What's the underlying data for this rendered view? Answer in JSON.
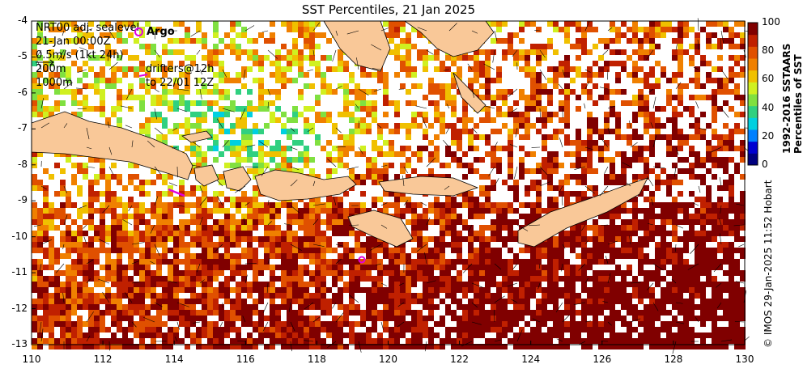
{
  "title": "SST Percentiles, 21 Jan 2025",
  "overlay": {
    "line1": "NRT00 adj. sealevel",
    "line2": "21-Jan 00:00Z",
    "line3": "0.5m/s (1kt 24h)",
    "line4": "200m",
    "line5": "1000m",
    "argo_label": "Argo",
    "drifters_line1": "drifters@12h",
    "drifters_line2": "to 22/01 12Z"
  },
  "colorbar": {
    "ticks": [
      "100",
      "80",
      "60",
      "40",
      "20",
      "0"
    ],
    "title_line1": "1992-2016 SSTAARS",
    "title_line2": "Percentiles of SST"
  },
  "credit": "© IMOS 29-Jan-2025 11:52 Hobart",
  "axes": {
    "y_ticks": [
      "-4",
      "-5",
      "-6",
      "-7",
      "-8",
      "-9",
      "-10",
      "-11",
      "-12",
      "-13"
    ],
    "x_ticks": [
      "110",
      "112",
      "114",
      "116",
      "118",
      "120",
      "122",
      "124",
      "126",
      "128",
      "130"
    ]
  },
  "colors": {
    "land": "#f9c898",
    "argo": "#e000e0",
    "colorbar": [
      "#00007f",
      "#0000d0",
      "#0080ff",
      "#00d0e0",
      "#30d080",
      "#80e040",
      "#d0f020",
      "#f0c000",
      "#f08000",
      "#e05000",
      "#c02000",
      "#800000"
    ]
  }
}
